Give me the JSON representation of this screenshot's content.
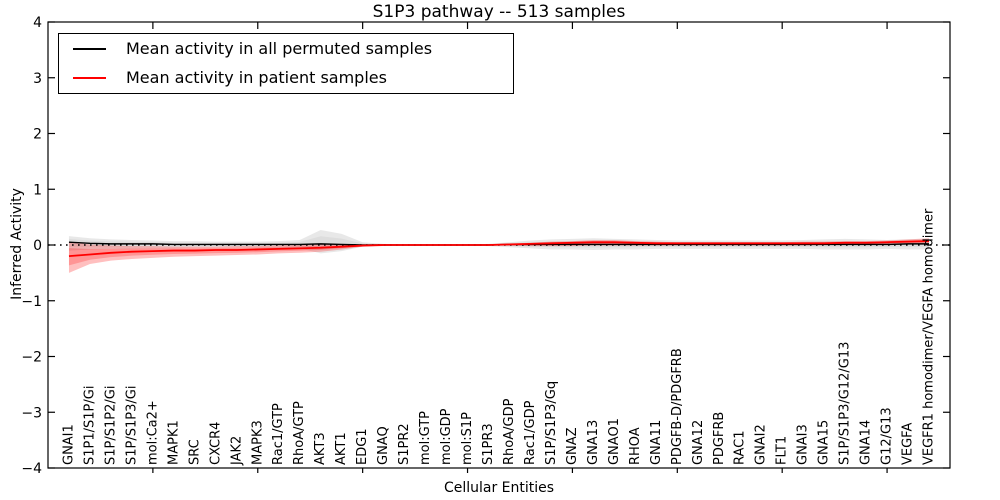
{
  "chart_data": {
    "type": "line",
    "title": "S1P3 pathway -- 513 samples",
    "xlabel": "Cellular Entities",
    "ylabel": "Inferred Activity",
    "ylim": [
      -4,
      4
    ],
    "yticks": [
      -4,
      -3,
      -2,
      -1,
      0,
      1,
      2,
      3,
      4
    ],
    "xlim": [
      0,
      43
    ],
    "xticks": [
      5,
      10,
      15,
      20,
      25,
      30,
      35,
      40
    ],
    "grid": false,
    "legend_position": "upper left",
    "zero_reference_line": {
      "y": 0,
      "style": "dotted",
      "color": "#000000"
    },
    "categories": [
      "GNAI1",
      "S1P1/S1P/Gi",
      "S1P/S1P2/Gi",
      "S1P/S1P3/Gi",
      "mol:Ca2+",
      "MAPK1",
      "SRC",
      "CXCR4",
      "JAK2",
      "MAPK3",
      "Rac1/GTP",
      "RhoA/GTP",
      "AKT3",
      "AKT1",
      "EDG1",
      "GNAQ",
      "S1PR2",
      "mol:GTP",
      "mol:GDP",
      "mol:S1P",
      "S1PR3",
      "RhoA/GDP",
      "Rac1/GDP",
      "S1P/S1P3/Gq",
      "GNAZ",
      "GNA13",
      "GNAO1",
      "RHOA",
      "GNA11",
      "PDGFB-D/PDGFRB",
      "GNA12",
      "PDGFRB",
      "RAC1",
      "GNAI2",
      "FLT1",
      "GNAI3",
      "GNA15",
      "S1P/S1P3/G12/G13",
      "GNA14",
      "G12/G13",
      "VEGFA",
      "VEGFR1 homodimer/VEGFA homodimer"
    ],
    "series": [
      {
        "name": "Mean activity in all permuted samples",
        "color": "#000000",
        "line_style": "solid",
        "band_color": "#808080",
        "values": [
          0.05,
          0.03,
          0.02,
          0.02,
          0.02,
          0.01,
          0.01,
          0.01,
          0.01,
          0.01,
          0.01,
          0.01,
          0.02,
          0.01,
          0.0,
          0.0,
          0.0,
          0.0,
          0.0,
          0.0,
          0.0,
          0.01,
          0.01,
          0.01,
          0.01,
          0.01,
          0.01,
          0.01,
          0.01,
          0.01,
          0.01,
          0.01,
          0.01,
          0.01,
          0.01,
          0.01,
          0.01,
          0.01,
          0.01,
          0.01,
          0.02,
          0.02
        ],
        "band_upper": [
          0.16,
          0.12,
          0.1,
          0.09,
          0.08,
          0.07,
          0.07,
          0.06,
          0.06,
          0.06,
          0.07,
          0.09,
          0.27,
          0.2,
          0.05,
          0.02,
          0.01,
          0.01,
          0.01,
          0.01,
          0.02,
          0.05,
          0.08,
          0.1,
          0.11,
          0.12,
          0.11,
          0.1,
          0.09,
          0.08,
          0.08,
          0.08,
          0.08,
          0.08,
          0.08,
          0.09,
          0.1,
          0.11,
          0.1,
          0.09,
          0.1,
          0.11
        ],
        "band_lower": [
          -0.1,
          -0.08,
          -0.07,
          -0.07,
          -0.06,
          -0.06,
          -0.05,
          -0.05,
          -0.05,
          -0.05,
          -0.05,
          -0.06,
          -0.15,
          -0.11,
          -0.03,
          -0.01,
          -0.01,
          -0.01,
          -0.01,
          -0.01,
          -0.02,
          -0.04,
          -0.06,
          -0.08,
          -0.08,
          -0.09,
          -0.08,
          -0.08,
          -0.07,
          -0.07,
          -0.07,
          -0.07,
          -0.07,
          -0.07,
          -0.07,
          -0.07,
          -0.08,
          -0.08,
          -0.08,
          -0.07,
          -0.08,
          -0.08
        ]
      },
      {
        "name": "Mean activity in patient samples",
        "color": "#ff0000",
        "line_style": "solid",
        "band_color": "#ff0000",
        "values": [
          -0.2,
          -0.17,
          -0.14,
          -0.12,
          -0.11,
          -0.1,
          -0.1,
          -0.09,
          -0.09,
          -0.08,
          -0.07,
          -0.06,
          -0.05,
          -0.03,
          -0.01,
          0.0,
          0.0,
          0.0,
          0.0,
          0.0,
          0.0,
          0.01,
          0.02,
          0.03,
          0.04,
          0.05,
          0.05,
          0.04,
          0.03,
          0.03,
          0.03,
          0.03,
          0.03,
          0.03,
          0.03,
          0.03,
          0.03,
          0.04,
          0.04,
          0.05,
          0.06,
          0.07
        ],
        "band_upper": [
          0.06,
          0.01,
          -0.01,
          -0.02,
          -0.02,
          -0.03,
          -0.03,
          -0.03,
          -0.02,
          -0.02,
          -0.01,
          0.0,
          0.01,
          0.01,
          0.0,
          0.0,
          0.0,
          0.0,
          0.0,
          0.0,
          0.01,
          0.02,
          0.04,
          0.06,
          0.07,
          0.09,
          0.09,
          0.07,
          0.06,
          0.05,
          0.05,
          0.05,
          0.05,
          0.05,
          0.05,
          0.06,
          0.06,
          0.07,
          0.07,
          0.08,
          0.1,
          0.12
        ],
        "band_lower": [
          -0.5,
          -0.34,
          -0.28,
          -0.25,
          -0.23,
          -0.21,
          -0.2,
          -0.19,
          -0.18,
          -0.17,
          -0.15,
          -0.14,
          -0.12,
          -0.08,
          -0.03,
          -0.01,
          -0.01,
          0.0,
          0.0,
          0.0,
          -0.01,
          -0.01,
          -0.02,
          -0.02,
          -0.02,
          -0.01,
          -0.01,
          -0.01,
          -0.01,
          -0.01,
          -0.01,
          -0.01,
          -0.01,
          -0.01,
          -0.01,
          -0.01,
          0.0,
          0.0,
          0.0,
          0.01,
          0.02,
          0.03
        ]
      }
    ]
  }
}
